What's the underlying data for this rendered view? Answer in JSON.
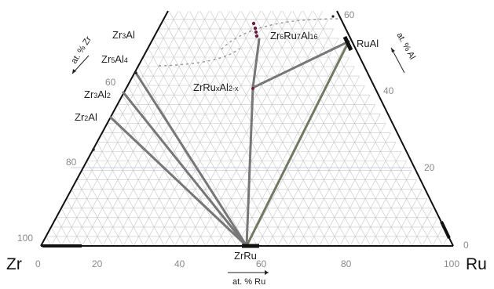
{
  "corners": {
    "left": "Zr",
    "right": "Ru"
  },
  "axes": {
    "bottom": {
      "title": "at. % Ru",
      "ticks": [
        "0",
        "20",
        "40",
        "60",
        "80",
        "100"
      ]
    },
    "left": {
      "title": "at. % Zr",
      "ticks": [
        "60",
        "80",
        "100"
      ]
    },
    "right": {
      "title": "at. % Al",
      "ticks": [
        "0",
        "20",
        "40",
        "60"
      ]
    }
  },
  "phases": {
    "zr3al": {
      "name": "Zr3Al",
      "label": "Zr3Al"
    },
    "zr5al4": {
      "name": "Zr5Al4",
      "label": "Zr5Al4"
    },
    "zr3al2": {
      "name": "Zr3Al2",
      "label": "Zr3Al2"
    },
    "zr2al": {
      "name": "Zr2Al",
      "label": "Zr2Al"
    },
    "zr6ru7al16": {
      "name": "Zr6Ru7Al16",
      "label": "Zr6Ru7Al16"
    },
    "zrruxal": {
      "name": "ZrRuxAl2-x",
      "label": "ZrRuxAl2-x"
    },
    "rual": {
      "name": "RuAl",
      "label": "RuAl"
    },
    "zrru": {
      "name": "ZrRu",
      "label": "ZrRu"
    }
  },
  "colors": {
    "frame": "#111111",
    "tie_line": "#777777",
    "tie_line_green": "#707a63",
    "grid": "#c6c6c6",
    "dotted_boundary": "#9a9a9a",
    "marker": "#6a2040"
  }
}
